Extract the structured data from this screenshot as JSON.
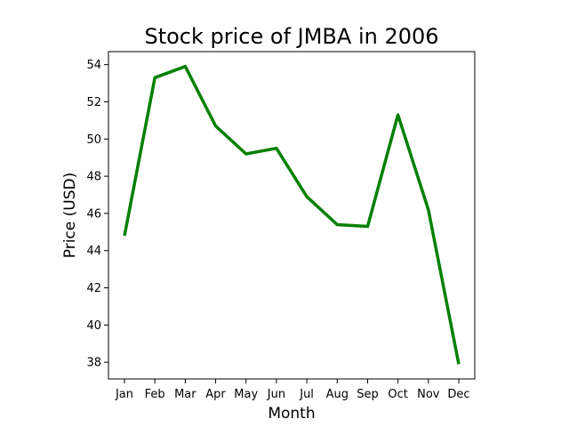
{
  "chart_data": {
    "type": "line",
    "title": "Stock price of JMBA in 2006",
    "xlabel": "Month",
    "ylabel": "Price (USD)",
    "categories": [
      "Jan",
      "Feb",
      "Mar",
      "Apr",
      "May",
      "Jun",
      "Jul",
      "Aug",
      "Sep",
      "Oct",
      "Nov",
      "Dec"
    ],
    "series": [
      {
        "values": [
          44.8,
          53.3,
          53.9,
          50.7,
          49.2,
          49.5,
          46.9,
          45.4,
          45.3,
          51.3,
          46.2,
          37.9
        ],
        "color": "#008000"
      }
    ],
    "yticks": [
      38,
      40,
      42,
      44,
      46,
      48,
      50,
      52,
      54
    ],
    "ylim": [
      37.1,
      54.7
    ],
    "grid": false,
    "legend": "none"
  }
}
